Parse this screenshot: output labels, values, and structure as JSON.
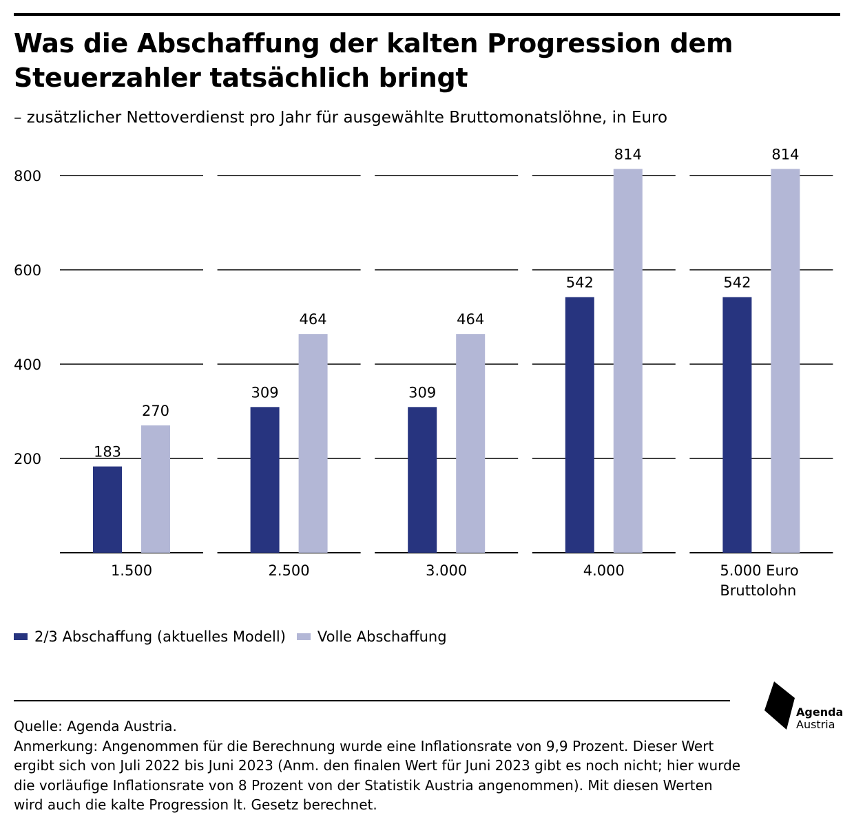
{
  "title": "Was die Abschaffung der kalten Progression dem Steuerzahler tatsächlich bringt",
  "subtitle": "– zusätzlicher Nettoverdienst pro Jahr für ausgewählte Bruttomonatslöhne, in Euro",
  "chart_data": {
    "type": "bar",
    "categories": [
      "1.500",
      "2.500",
      "3.000",
      "4.000",
      "5.000 Euro\nBruttolohn"
    ],
    "series": [
      {
        "name": "2/3 Abschaffung (aktuelles Modell)",
        "values": [
          183,
          309,
          309,
          542,
          542
        ],
        "color": "#27347f"
      },
      {
        "name": "Volle Abschaffung",
        "values": [
          270,
          464,
          464,
          814,
          814
        ],
        "color": "#b3b7d6"
      }
    ],
    "yticks": [
      200,
      400,
      600,
      800
    ],
    "ylim": [
      0,
      800
    ],
    "grid": true,
    "legend": "bottom-left"
  },
  "legend": {
    "item1": "2/3 Abschaffung (aktuelles Modell)",
    "item2": "Volle Abschaffung"
  },
  "source": "Quelle: Agenda Austria.",
  "note": "Anmerkung: Angenommen für die Berechnung wurde eine Inflationsrate von 9,9 Prozent. Dieser Wert ergibt sich von Juli 2022 bis Juni 2023 (Anm. den finalen Wert für Juni 2023 gibt es noch nicht; hier wurde die vorläufige Inflationsrate von 8 Prozent von der Statistik Austria angenommen). Mit diesen Werten wird auch die kalte Progression lt. Gesetz berechnet.",
  "logo": {
    "line1": "Agenda",
    "line2": "Austria"
  }
}
